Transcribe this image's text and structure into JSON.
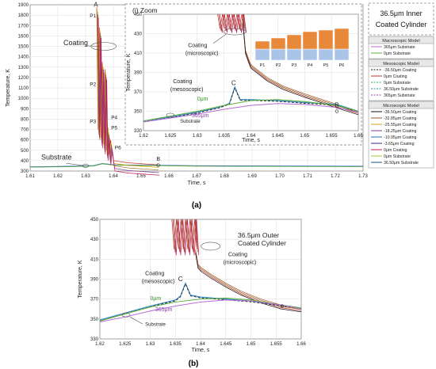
{
  "figure": {
    "label_a": "(a)",
    "label_b": "(b)",
    "title_a": "36.5μm Inner Coated Cylinder",
    "title_b": "36.5μm Outer Coated Cylinder"
  },
  "legend": {
    "groups": [
      {
        "title": "Macroscopic Model",
        "entries": [
          {
            "label": "365μm Substrate",
            "color": "#b36bd6",
            "dash": false
          },
          {
            "label": "0μm Substrate",
            "color": "#5fae3a",
            "dash": false
          }
        ]
      },
      {
        "title": "Mesoscopic Model",
        "entries": [
          {
            "label": "-36.50μm Coating",
            "color": "#111111",
            "dash": true
          },
          {
            "label": "0μm Coating",
            "color": "#c0392b",
            "dash": false
          },
          {
            "label": "0μm Substrate",
            "color": "#27ae60",
            "dash": true
          },
          {
            "label": "36.50μm Substrate",
            "color": "#2e86c1",
            "dash": true
          },
          {
            "label": "365μm Substrate",
            "color": "#8e44ad",
            "dash": true
          }
        ]
      },
      {
        "title": "Microscopic Model",
        "entries": [
          {
            "label": "-36.50μm Coating",
            "color": "#111111",
            "dash": false
          },
          {
            "label": "-32.85μm Coating",
            "color": "#a0522d",
            "dash": false
          },
          {
            "label": "-25.55μm Coating",
            "color": "#d4a017",
            "dash": false
          },
          {
            "label": "-18.25μm Coating",
            "color": "#7d3c98",
            "dash": false
          },
          {
            "label": "-10.95μm Coating",
            "color": "#1f6fb4",
            "dash": false
          },
          {
            "label": "-3.65μm Coating",
            "color": "#2c2c8c",
            "dash": false
          },
          {
            "label": "0μm Coating",
            "color": "#c2185b",
            "dash": false
          },
          {
            "label": "0μm Substrate",
            "color": "#9acd32",
            "dash": false
          },
          {
            "label": "36.50μm Substrate",
            "color": "#1a5276",
            "dash": false
          }
        ]
      }
    ]
  },
  "chart_data": [
    {
      "type": "line",
      "panel": "a",
      "xlabel": "Time, s",
      "ylabel": "Temperature, K",
      "xlim": [
        1.61,
        1.73
      ],
      "ylim": [
        300,
        1900
      ],
      "xticks": [
        "1.61",
        "1.62",
        "1.63",
        "1.64",
        "1.65",
        "1.66",
        "1.67",
        "1.68",
        "1.69",
        "1.70",
        "1.71",
        "1.72",
        "1.73"
      ],
      "yticks": [
        "300",
        "400",
        "500",
        "600",
        "700",
        "800",
        "900",
        "1000",
        "1100",
        "1200",
        "1300",
        "1400",
        "1500",
        "1600",
        "1700",
        "1800",
        "1900"
      ],
      "grid": true,
      "annotations": [
        "A",
        "P1",
        "P2",
        "P3",
        "P4",
        "P5",
        "P6",
        "B",
        "Coating",
        "Substrate"
      ],
      "series": [
        {
          "name": "Substrate",
          "x": [
            1.61,
            1.625,
            1.633,
            1.636,
            1.64,
            1.65,
            1.656,
            1.67,
            1.73
          ],
          "y": [
            340,
            345,
            352,
            372,
            360,
            356,
            355,
            350,
            345
          ]
        },
        {
          "name": "Coating",
          "x": [
            1.634,
            1.6345,
            1.635,
            1.6355,
            1.636,
            1.6365,
            1.637,
            1.6375,
            1.638,
            1.6385,
            1.639,
            1.64,
            1.645,
            1.656
          ],
          "y": [
            1880,
            700,
            1680,
            620,
            1350,
            560,
            1280,
            500,
            720,
            460,
            600,
            400,
            380,
            360
          ]
        }
      ]
    },
    {
      "type": "line",
      "panel": "a-inset",
      "title": "(i) Zoom",
      "xlabel": "Time, s",
      "ylabel": "Temperature, K",
      "xlim": [
        1.62,
        1.66
      ],
      "ylim": [
        330,
        450
      ],
      "xticks": [
        "1.62",
        "1.625",
        "1.63",
        "1.635",
        "1.64",
        "1.645",
        "1.65",
        "1.655",
        "1.66"
      ],
      "yticks": [
        "330",
        "350",
        "370",
        "390",
        "410",
        "430",
        "450"
      ],
      "grid": true,
      "annotations": [
        "C",
        "B",
        "Coating (microscopic)",
        "Coating (mesoscopic)",
        "0μm",
        "365μm",
        "Substrate"
      ],
      "layer_labels": [
        "P1",
        "P2",
        "P3",
        "P4",
        "P5",
        "P6"
      ],
      "series": [
        {
          "name": "Coating (microscopic)",
          "x": [
            1.6385,
            1.639,
            1.6395,
            1.64,
            1.643,
            1.646,
            1.65,
            1.655,
            1.656,
            1.66
          ],
          "y": [
            445,
            413,
            405,
            398,
            385,
            376,
            368,
            359,
            357,
            350
          ]
        },
        {
          "name": "Coating (mesoscopic)",
          "x": [
            1.62,
            1.625,
            1.63,
            1.634,
            1.636,
            1.637,
            1.638,
            1.64,
            1.645,
            1.65,
            1.656,
            1.66
          ],
          "y": [
            340,
            344,
            349,
            354,
            358,
            375,
            362,
            362,
            361,
            359,
            357,
            350
          ]
        },
        {
          "name": "0μm",
          "x": [
            1.62,
            1.625,
            1.63,
            1.635,
            1.64,
            1.645,
            1.65,
            1.656,
            1.66
          ],
          "y": [
            340,
            345,
            350,
            356,
            361,
            362,
            360,
            356,
            350
          ]
        },
        {
          "name": "365μm",
          "x": [
            1.62,
            1.625,
            1.63,
            1.635,
            1.64,
            1.645,
            1.65,
            1.656,
            1.66
          ],
          "y": [
            339,
            343,
            347,
            352,
            356,
            358,
            357,
            354,
            349
          ]
        }
      ]
    },
    {
      "type": "line",
      "panel": "b",
      "xlabel": "Time, s",
      "ylabel": "Temperature, K",
      "xlim": [
        1.62,
        1.66
      ],
      "ylim": [
        330,
        450
      ],
      "xticks": [
        "1.62",
        "1.625",
        "1.63",
        "1.635",
        "1.64",
        "1.645",
        "1.65",
        "1.655",
        "1.66"
      ],
      "yticks": [
        "330",
        "350",
        "370",
        "390",
        "410",
        "430",
        "450"
      ],
      "grid": true,
      "annotations": [
        "C",
        "Coating (microscopic)",
        "Coating (mesoscopic)",
        "0μm",
        "365μm",
        "Substrate"
      ],
      "series": [
        {
          "name": "Coating (microscopic)",
          "x": [
            1.639,
            1.6395,
            1.64,
            1.642,
            1.645,
            1.648,
            1.652,
            1.656,
            1.66
          ],
          "y": [
            420,
            405,
            402,
            395,
            386,
            378,
            370,
            364,
            361
          ]
        },
        {
          "name": "Coating (mesoscopic)",
          "x": [
            1.62,
            1.625,
            1.63,
            1.635,
            1.636,
            1.637,
            1.638,
            1.64,
            1.645,
            1.65,
            1.656,
            1.66
          ],
          "y": [
            349,
            356,
            363,
            369,
            373,
            386,
            374,
            372,
            370,
            368,
            364,
            361
          ]
        },
        {
          "name": "0μm",
          "x": [
            1.62,
            1.625,
            1.63,
            1.635,
            1.64,
            1.645,
            1.65,
            1.656,
            1.66
          ],
          "y": [
            348,
            355,
            362,
            367,
            370,
            371,
            369,
            364,
            361
          ]
        },
        {
          "name": "365μm",
          "x": [
            1.62,
            1.625,
            1.63,
            1.635,
            1.64,
            1.645,
            1.65,
            1.656,
            1.66
          ],
          "y": [
            347,
            352,
            358,
            363,
            367,
            369,
            368,
            364,
            360
          ]
        }
      ]
    }
  ]
}
